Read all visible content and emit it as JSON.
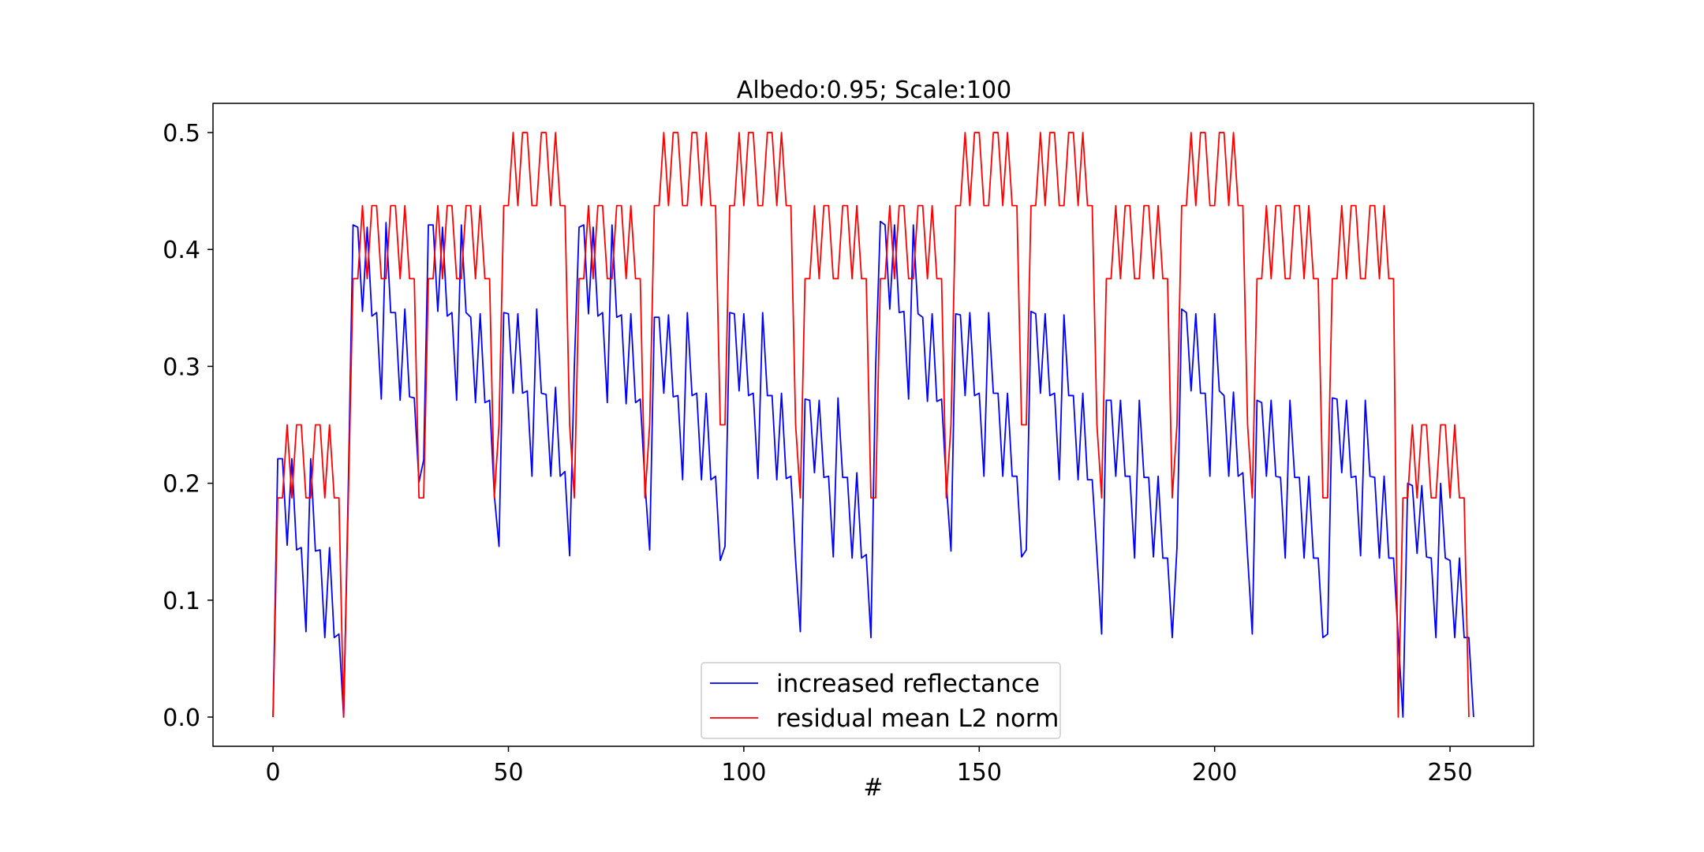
{
  "chart_data": {
    "type": "line",
    "title": "Albedo:0.95; Scale:100",
    "xlabel": "#",
    "ylabel": "",
    "xlim": [
      -12.75,
      267.75
    ],
    "ylim": [
      -0.025,
      0.525
    ],
    "xticks": [
      0,
      50,
      100,
      150,
      200,
      250
    ],
    "xtick_labels": [
      "0",
      "50",
      "100",
      "150",
      "200",
      "250"
    ],
    "yticks": [
      0.0,
      0.1,
      0.2,
      0.3,
      0.4,
      0.5
    ],
    "ytick_labels": [
      "0.0",
      "0.1",
      "0.2",
      "0.3",
      "0.4",
      "0.5"
    ],
    "grid": false,
    "legend_position": "lower center",
    "x": "0..255",
    "series": [
      {
        "name": "increased reflectance",
        "color": "#0000ff",
        "values": [
          0.0,
          0.221,
          0.221,
          0.147,
          0.221,
          0.143,
          0.145,
          0.073,
          0.221,
          0.142,
          0.143,
          0.068,
          0.145,
          0.068,
          0.071,
          0.0,
          0.2,
          0.421,
          0.419,
          0.347,
          0.419,
          0.343,
          0.346,
          0.272,
          0.423,
          0.346,
          0.346,
          0.271,
          0.349,
          0.274,
          0.273,
          0.201,
          0.22,
          0.421,
          0.421,
          0.347,
          0.419,
          0.343,
          0.346,
          0.271,
          0.421,
          0.346,
          0.342,
          0.269,
          0.345,
          0.269,
          0.271,
          0.19,
          0.146,
          0.346,
          0.345,
          0.277,
          0.345,
          0.277,
          0.279,
          0.206,
          0.349,
          0.277,
          0.276,
          0.206,
          0.282,
          0.206,
          0.21,
          0.138,
          0.3,
          0.419,
          0.421,
          0.345,
          0.419,
          0.343,
          0.346,
          0.269,
          0.421,
          0.342,
          0.344,
          0.268,
          0.345,
          0.269,
          0.272,
          0.2,
          0.143,
          0.342,
          0.342,
          0.277,
          0.344,
          0.274,
          0.275,
          0.203,
          0.346,
          0.275,
          0.277,
          0.203,
          0.277,
          0.203,
          0.206,
          0.134,
          0.146,
          0.346,
          0.345,
          0.279,
          0.345,
          0.275,
          0.277,
          0.204,
          0.346,
          0.275,
          0.275,
          0.203,
          0.277,
          0.204,
          0.206,
          0.134,
          0.073,
          0.272,
          0.271,
          0.209,
          0.271,
          0.205,
          0.206,
          0.137,
          0.273,
          0.205,
          0.205,
          0.136,
          0.209,
          0.136,
          0.139,
          0.068,
          0.3,
          0.424,
          0.421,
          0.349,
          0.421,
          0.346,
          0.347,
          0.272,
          0.421,
          0.345,
          0.342,
          0.27,
          0.345,
          0.27,
          0.272,
          0.2,
          0.142,
          0.345,
          0.344,
          0.275,
          0.346,
          0.275,
          0.277,
          0.206,
          0.346,
          0.277,
          0.277,
          0.206,
          0.277,
          0.206,
          0.206,
          0.137,
          0.143,
          0.347,
          0.345,
          0.277,
          0.345,
          0.275,
          0.277,
          0.203,
          0.344,
          0.275,
          0.275,
          0.203,
          0.277,
          0.203,
          0.203,
          0.139,
          0.071,
          0.271,
          0.271,
          0.206,
          0.271,
          0.206,
          0.206,
          0.136,
          0.271,
          0.205,
          0.205,
          0.137,
          0.206,
          0.136,
          0.136,
          0.068,
          0.145,
          0.349,
          0.346,
          0.279,
          0.345,
          0.277,
          0.277,
          0.206,
          0.345,
          0.279,
          0.275,
          0.206,
          0.278,
          0.206,
          0.209,
          0.138,
          0.071,
          0.271,
          0.269,
          0.206,
          0.271,
          0.206,
          0.205,
          0.136,
          0.271,
          0.205,
          0.205,
          0.136,
          0.206,
          0.136,
          0.136,
          0.068,
          0.071,
          0.273,
          0.272,
          0.209,
          0.271,
          0.205,
          0.206,
          0.138,
          0.271,
          0.206,
          0.205,
          0.136,
          0.206,
          0.136,
          0.136,
          0.068,
          0.0,
          0.2,
          0.198,
          0.14,
          0.198,
          0.137,
          0.136,
          0.068,
          0.2,
          0.136,
          0.134,
          0.068,
          0.136,
          0.068,
          0.068,
          0.0
        ]
      },
      {
        "name": "residual mean L2 norm",
        "color": "#ff0000",
        "values": [
          0.0,
          0.1875,
          0.1875,
          0.25,
          0.1875,
          0.25,
          0.25,
          0.1875,
          0.1875,
          0.25,
          0.25,
          0.1875,
          0.25,
          0.1875,
          0.1875,
          0.0,
          0.1875,
          0.375,
          0.375,
          0.4375,
          0.375,
          0.4375,
          0.4375,
          0.375,
          0.375,
          0.4375,
          0.4375,
          0.375,
          0.4375,
          0.375,
          0.375,
          0.1875,
          0.1875,
          0.375,
          0.375,
          0.4375,
          0.375,
          0.4375,
          0.4375,
          0.375,
          0.375,
          0.4375,
          0.4375,
          0.375,
          0.4375,
          0.375,
          0.375,
          0.1875,
          0.25,
          0.4375,
          0.4375,
          0.5,
          0.4375,
          0.5,
          0.5,
          0.4375,
          0.4375,
          0.5,
          0.5,
          0.4375,
          0.5,
          0.4375,
          0.4375,
          0.25,
          0.1875,
          0.375,
          0.375,
          0.4375,
          0.375,
          0.4375,
          0.4375,
          0.375,
          0.375,
          0.4375,
          0.4375,
          0.375,
          0.4375,
          0.375,
          0.375,
          0.1875,
          0.25,
          0.4375,
          0.4375,
          0.5,
          0.4375,
          0.5,
          0.5,
          0.4375,
          0.4375,
          0.5,
          0.5,
          0.4375,
          0.5,
          0.4375,
          0.4375,
          0.25,
          0.25,
          0.4375,
          0.4375,
          0.5,
          0.4375,
          0.5,
          0.5,
          0.4375,
          0.4375,
          0.5,
          0.5,
          0.4375,
          0.5,
          0.4375,
          0.4375,
          0.25,
          0.1875,
          0.375,
          0.375,
          0.4375,
          0.375,
          0.4375,
          0.4375,
          0.375,
          0.375,
          0.4375,
          0.4375,
          0.375,
          0.4375,
          0.375,
          0.375,
          0.1875,
          0.1875,
          0.375,
          0.375,
          0.4375,
          0.375,
          0.4375,
          0.4375,
          0.375,
          0.375,
          0.4375,
          0.4375,
          0.375,
          0.4375,
          0.375,
          0.375,
          0.1875,
          0.25,
          0.4375,
          0.4375,
          0.5,
          0.4375,
          0.5,
          0.5,
          0.4375,
          0.4375,
          0.5,
          0.5,
          0.4375,
          0.5,
          0.4375,
          0.4375,
          0.25,
          0.25,
          0.4375,
          0.4375,
          0.5,
          0.4375,
          0.5,
          0.5,
          0.4375,
          0.4375,
          0.5,
          0.5,
          0.4375,
          0.5,
          0.4375,
          0.4375,
          0.25,
          0.1875,
          0.375,
          0.375,
          0.4375,
          0.375,
          0.4375,
          0.4375,
          0.375,
          0.375,
          0.4375,
          0.4375,
          0.375,
          0.4375,
          0.375,
          0.375,
          0.1875,
          0.25,
          0.4375,
          0.4375,
          0.5,
          0.4375,
          0.5,
          0.5,
          0.4375,
          0.4375,
          0.5,
          0.5,
          0.4375,
          0.5,
          0.4375,
          0.4375,
          0.25,
          0.1875,
          0.375,
          0.375,
          0.4375,
          0.375,
          0.4375,
          0.4375,
          0.375,
          0.375,
          0.4375,
          0.4375,
          0.375,
          0.4375,
          0.375,
          0.375,
          0.1875,
          0.1875,
          0.375,
          0.375,
          0.4375,
          0.375,
          0.4375,
          0.4375,
          0.375,
          0.375,
          0.4375,
          0.4375,
          0.375,
          0.4375,
          0.375,
          0.375,
          0.0,
          0.1875,
          0.1875,
          0.25,
          0.1875,
          0.25,
          0.25,
          0.1875,
          0.1875,
          0.25,
          0.25,
          0.1875,
          0.25,
          0.1875,
          0.1875,
          0.0
        ]
      }
    ]
  }
}
